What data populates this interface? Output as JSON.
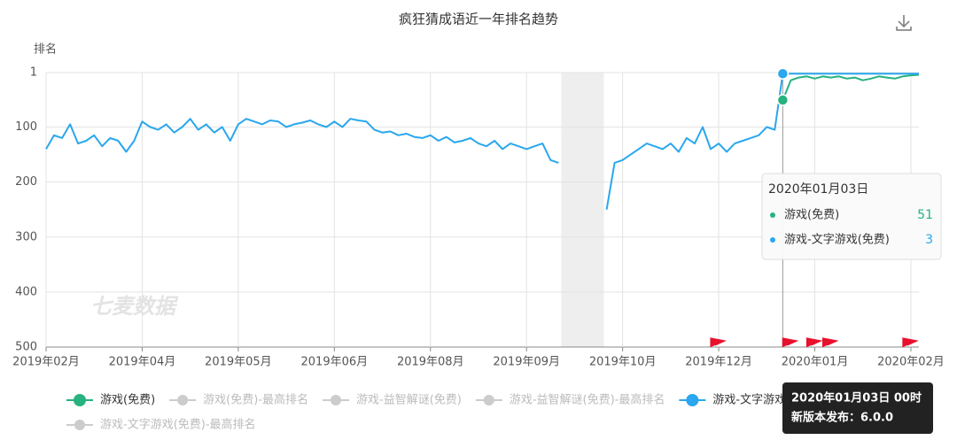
{
  "chart_data": {
    "type": "line",
    "title": "疯狂猜成语近一年排名趋势",
    "y_label": "排名",
    "watermark": "七麦数据",
    "categories": [
      "2019年02月",
      null,
      null,
      null,
      null,
      null,
      null,
      null,
      null,
      null,
      null,
      null,
      "2019年04月",
      null,
      null,
      null,
      null,
      null,
      null,
      null,
      null,
      null,
      null,
      null,
      "2019年05月",
      null,
      null,
      null,
      null,
      null,
      null,
      null,
      null,
      null,
      null,
      null,
      "2019年06月",
      null,
      null,
      null,
      null,
      null,
      null,
      null,
      null,
      null,
      null,
      null,
      "2019年08月",
      null,
      null,
      null,
      null,
      null,
      null,
      null,
      null,
      null,
      null,
      null,
      "2019年09月",
      null,
      null,
      null,
      null,
      null,
      null,
      null,
      null,
      null,
      null,
      null,
      "2019年10月",
      null,
      null,
      null,
      null,
      null,
      null,
      null,
      null,
      null,
      null,
      null,
      "2019年12月",
      null,
      null,
      null,
      null,
      null,
      null,
      null,
      null,
      null,
      null,
      null,
      "2020年01月",
      null,
      null,
      null,
      null,
      null,
      null,
      null,
      null,
      null,
      null,
      null,
      "2020年02月",
      null
    ],
    "series": [
      {
        "name": "游戏(免费)",
        "color": "#27b27f",
        "visible": true,
        "values": [
          null,
          null,
          null,
          null,
          null,
          null,
          null,
          null,
          null,
          null,
          null,
          null,
          null,
          null,
          null,
          null,
          null,
          null,
          null,
          null,
          null,
          null,
          null,
          null,
          null,
          null,
          null,
          null,
          null,
          null,
          null,
          null,
          null,
          null,
          null,
          null,
          null,
          null,
          null,
          null,
          null,
          null,
          null,
          null,
          null,
          null,
          null,
          null,
          null,
          null,
          null,
          null,
          null,
          null,
          null,
          null,
          null,
          null,
          null,
          null,
          null,
          null,
          null,
          null,
          null,
          null,
          null,
          null,
          null,
          null,
          null,
          null,
          null,
          null,
          null,
          null,
          null,
          null,
          null,
          null,
          null,
          null,
          null,
          null,
          null,
          null,
          null,
          null,
          null,
          null,
          null,
          null,
          51,
          15,
          10,
          8,
          12,
          8,
          10,
          8,
          12,
          10,
          15,
          12,
          8,
          10,
          12,
          8,
          6,
          5
        ]
      },
      {
        "name": "游戏(免费)-最高排名",
        "color": "#cccccc",
        "visible": false
      },
      {
        "name": "游戏-益智解谜(免费)",
        "color": "#cccccc",
        "visible": false
      },
      {
        "name": "游戏-益智解谜(免费)-最高排名",
        "color": "#cccccc",
        "visible": false
      },
      {
        "name": "游戏-文字游戏(免费)",
        "color": "#2aa7ee",
        "visible": true,
        "values": [
          140,
          115,
          120,
          95,
          130,
          125,
          115,
          135,
          120,
          125,
          145,
          125,
          90,
          100,
          105,
          95,
          110,
          100,
          85,
          105,
          95,
          110,
          100,
          125,
          95,
          85,
          90,
          95,
          88,
          90,
          100,
          95,
          92,
          88,
          95,
          100,
          90,
          100,
          85,
          88,
          90,
          105,
          110,
          108,
          115,
          112,
          118,
          120,
          115,
          125,
          118,
          128,
          125,
          120,
          130,
          135,
          125,
          140,
          130,
          135,
          140,
          135,
          130,
          160,
          165,
          null,
          null,
          null,
          null,
          null,
          250,
          165,
          160,
          150,
          140,
          130,
          135,
          140,
          130,
          145,
          120,
          130,
          100,
          140,
          130,
          145,
          130,
          125,
          120,
          115,
          100,
          105,
          3,
          3,
          3,
          3,
          3,
          3,
          3,
          3,
          3,
          3,
          3,
          3,
          3,
          3,
          3,
          3,
          3,
          3
        ]
      },
      {
        "name": "游戏-文字游戏(免费)-最高排名",
        "color": "#cccccc",
        "visible": false
      }
    ],
    "ylim": [
      1,
      500
    ],
    "y_inverted": true,
    "yticks": [
      1,
      100,
      200,
      300,
      400,
      500
    ],
    "grid": true,
    "tooltip": {
      "title": "2020年01月03日",
      "index": 92
    },
    "release_flags": [
      83,
      92,
      95,
      97,
      107
    ],
    "release_note": {
      "time": "2020年01月03日 00时",
      "text": "新版本发布：6.0.0"
    }
  }
}
